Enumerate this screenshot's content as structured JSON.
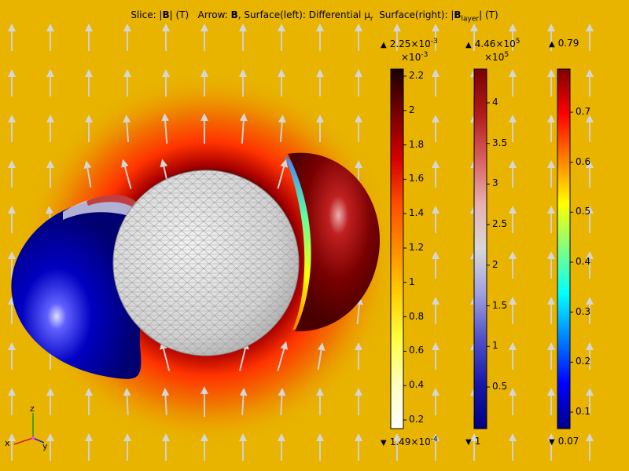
{
  "title": {
    "slice_prefix": "Slice: |",
    "slice_var": "B",
    "slice_suffix": "| (T)",
    "arrow_prefix": "Arrow: ",
    "arrow_var": "B",
    "surface_left_prefix": ", Surface(left): Differential μ",
    "surface_left_sub": "r",
    "surface_right_prefix": "Surface(right): |",
    "surface_right_var": "B",
    "surface_right_sub": "layer",
    "surface_right_suffix": "| (T)"
  },
  "colorbars": [
    {
      "name": "slice-colorbar",
      "max_label": "2.25×10",
      "max_exp": "-3",
      "scale_label": "×10",
      "scale_exp": "-3",
      "min_label": "1.49×10",
      "min_exp": "-4",
      "ticks": [
        "2.2",
        "2",
        "1.8",
        "1.6",
        "1.4",
        "1.2",
        "1",
        "0.8",
        "0.6",
        "0.4",
        "0.2"
      ],
      "colors": [
        "#1a0000",
        "#7a0000",
        "#d40000",
        "#ff4d00",
        "#ff8c00",
        "#ffcc00",
        "#ffff40",
        "#ffffc0",
        "#ffffff"
      ]
    },
    {
      "name": "mu-colorbar",
      "max_label": "4.46×10",
      "max_exp": "5",
      "scale_label": "×10",
      "scale_exp": "5",
      "min_label": "1",
      "min_exp": "",
      "ticks": [
        "4",
        "3.5",
        "3",
        "2.5",
        "2",
        "1.5",
        "1",
        "0.5"
      ],
      "colors": [
        "#7a0000",
        "#b01a1a",
        "#d86060",
        "#e8b0b0",
        "#d8d8d8",
        "#a0a0e0",
        "#5050c8",
        "#1818a8",
        "#000080"
      ]
    },
    {
      "name": "layer-colorbar",
      "max_label": "0.79",
      "max_exp": "",
      "scale_label": "",
      "scale_exp": "",
      "min_label": "0.07",
      "min_exp": "",
      "ticks": [
        "0.7",
        "0.6",
        "0.5",
        "0.4",
        "0.3",
        "0.2",
        "0.1"
      ],
      "colors": [
        "#800000",
        "#ff0000",
        "#ff8000",
        "#ffff00",
        "#80ff80",
        "#00ffff",
        "#0080ff",
        "#0000ff",
        "#00008a"
      ]
    }
  ],
  "axes": {
    "x": "x",
    "y": "y",
    "z": "z"
  },
  "colors": {
    "background": "#e8b400",
    "arrow": "#d0d0d0",
    "left_shell": "#00008a",
    "right_shell": "#7a0000"
  }
}
